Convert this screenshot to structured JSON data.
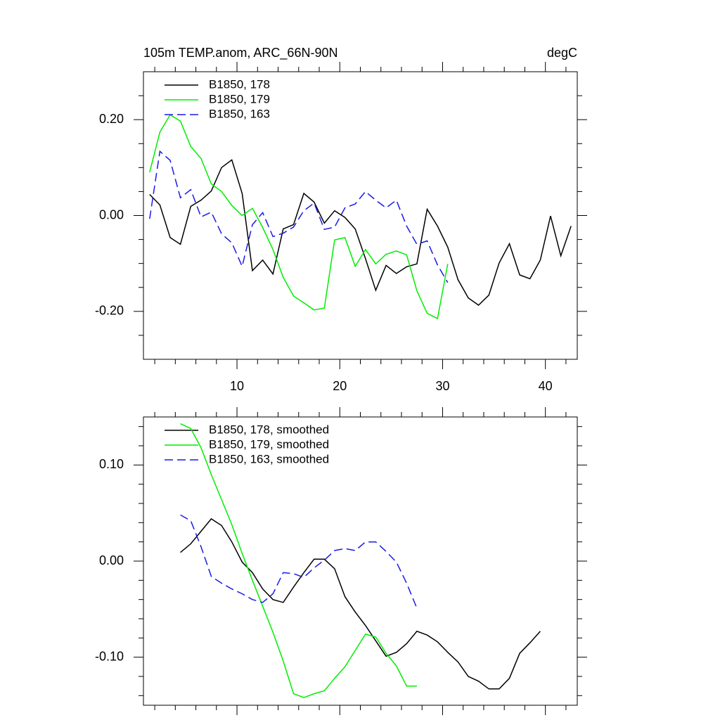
{
  "chart_data": [
    {
      "type": "line",
      "title": "105m TEMP.anom, ARC_66N-90N",
      "title_right": "degC",
      "xlim": [
        0.9,
        43.1
      ],
      "xticks": [
        10,
        20,
        30,
        40
      ],
      "xtick_labels": true,
      "xminorticks": [
        2,
        4,
        6,
        8,
        12,
        14,
        16,
        18,
        22,
        24,
        26,
        28,
        32,
        34,
        36,
        38,
        42
      ],
      "ylim": [
        -0.3,
        0.3
      ],
      "yticks": [
        {
          "value": -0.2,
          "label": "-0.20"
        },
        {
          "value": 0,
          "label": "0.00"
        },
        {
          "value": 0.2,
          "label": "0.20"
        }
      ],
      "yminorticks": [
        -0.25,
        -0.15,
        -0.1,
        -0.05,
        0.05,
        0.1,
        0.15,
        0.25
      ],
      "series": [
        {
          "name": "B1850, 178",
          "color": "#000000",
          "dashed": false,
          "x": [
            1.5,
            2.5,
            3.5,
            4.5,
            5.5,
            6.5,
            7.5,
            8.5,
            9.5,
            10.5,
            11.5,
            12.5,
            13.5,
            14.5,
            15.5,
            16.5,
            17.5,
            18.5,
            19.5,
            20.5,
            21.5,
            22.5,
            23.5,
            24.5,
            25.5,
            26.5,
            27.5,
            28.5,
            29.5,
            30.5,
            31.5,
            32.5,
            33.5,
            34.5,
            35.5,
            36.5,
            37.5,
            38.5,
            39.5,
            40.5,
            41.5,
            42.5
          ],
          "values": [
            0.044,
            0.022,
            -0.046,
            -0.06,
            0.019,
            0.032,
            0.051,
            0.1,
            0.116,
            0.046,
            -0.115,
            -0.093,
            -0.122,
            -0.028,
            -0.019,
            0.046,
            0.028,
            -0.016,
            0.01,
            -0.004,
            -0.028,
            -0.09,
            -0.156,
            -0.104,
            -0.121,
            -0.107,
            -0.101,
            0.013,
            -0.022,
            -0.066,
            -0.134,
            -0.172,
            -0.187,
            -0.166,
            -0.099,
            -0.059,
            -0.124,
            -0.132,
            -0.093,
            -0.001,
            -0.084,
            -0.022
          ]
        },
        {
          "name": "B1850, 179",
          "color": "#00ee00",
          "dashed": false,
          "x": [
            1.5,
            2.5,
            3.5,
            4.5,
            5.5,
            6.5,
            7.5,
            8.5,
            9.5,
            10.5,
            11.5,
            12.5,
            13.5,
            14.5,
            15.5,
            16.5,
            17.5,
            18.5,
            19.5,
            20.5,
            21.5,
            22.5,
            23.5,
            24.5,
            25.5,
            26.5,
            27.5,
            28.5,
            29.5,
            30.5
          ],
          "values": [
            0.09,
            0.174,
            0.21,
            0.197,
            0.144,
            0.119,
            0.066,
            0.05,
            0.021,
            0,
            0.015,
            -0.025,
            -0.071,
            -0.129,
            -0.168,
            -0.182,
            -0.197,
            -0.193,
            -0.051,
            -0.046,
            -0.106,
            -0.071,
            -0.101,
            -0.081,
            -0.074,
            -0.082,
            -0.157,
            -0.204,
            -0.215,
            -0.101
          ]
        },
        {
          "name": "B1850, 163",
          "color": "#1a1ae6",
          "dashed": true,
          "x": [
            1.5,
            2.5,
            3.5,
            4.5,
            5.5,
            6.5,
            7.5,
            8.5,
            9.5,
            10.5,
            11.5,
            12.5,
            13.5,
            14.5,
            15.5,
            16.5,
            17.5,
            18.5,
            19.5,
            20.5,
            21.5,
            22.5,
            23.5,
            24.5,
            25.5,
            26.5,
            27.5,
            28.5,
            29.5,
            30.5
          ],
          "values": [
            -0.007,
            0.134,
            0.115,
            0.037,
            0.054,
            -0.003,
            0.007,
            -0.038,
            -0.057,
            -0.106,
            -0.019,
            0.006,
            -0.044,
            -0.037,
            -0.024,
            0.01,
            0.026,
            -0.029,
            -0.024,
            0.016,
            0.024,
            0.05,
            0.032,
            0.016,
            0.032,
            -0.022,
            -0.06,
            -0.053,
            -0.103,
            -0.14
          ]
        }
      ]
    },
    {
      "type": "line",
      "xlim": [
        0.9,
        43.1
      ],
      "xticks": [
        10,
        20,
        30,
        40
      ],
      "xtick_labels": false,
      "xminorticks": [
        2,
        4,
        6,
        8,
        12,
        14,
        16,
        18,
        22,
        24,
        26,
        28,
        32,
        34,
        36,
        38,
        42
      ],
      "ylim": [
        -0.15,
        0.15
      ],
      "yticks": [
        {
          "value": -0.1,
          "label": "-0.10"
        },
        {
          "value": 0,
          "label": "0.00"
        },
        {
          "value": 0.1,
          "label": "0.10"
        }
      ],
      "yminorticks": [
        -0.14,
        -0.12,
        -0.08,
        -0.06,
        -0.04,
        -0.02,
        0.02,
        0.04,
        0.06,
        0.08,
        0.12,
        0.14
      ],
      "series": [
        {
          "name": "B1850, 178, smoothed",
          "color": "#000000",
          "dashed": false,
          "x": [
            4.5,
            5.5,
            6.5,
            7.5,
            8.5,
            9.5,
            10.5,
            11.5,
            12.5,
            13.5,
            14.5,
            15.5,
            16.5,
            17.5,
            18.5,
            19.5,
            20.5,
            21.5,
            22.5,
            23.5,
            24.5,
            25.5,
            26.5,
            27.5,
            28.5,
            29.5,
            30.5,
            31.5,
            32.5,
            33.5,
            34.5,
            35.5,
            36.5,
            37.5,
            38.5,
            39.5
          ],
          "values": [
            0.009,
            0.018,
            0.031,
            0.044,
            0.037,
            0.02,
            -0.001,
            -0.012,
            -0.029,
            -0.04,
            -0.043,
            -0.027,
            -0.012,
            0.002,
            0.002,
            -0.008,
            -0.037,
            -0.053,
            -0.067,
            -0.083,
            -0.099,
            -0.095,
            -0.086,
            -0.073,
            -0.077,
            -0.084,
            -0.095,
            -0.105,
            -0.12,
            -0.125,
            -0.133,
            -0.133,
            -0.122,
            -0.096,
            -0.085,
            -0.073
          ]
        },
        {
          "name": "B1850, 179, smoothed",
          "color": "#00ee00",
          "dashed": false,
          "x": [
            4.5,
            5.5,
            6.5,
            7.5,
            8.5,
            9.5,
            10.5,
            11.5,
            12.5,
            13.5,
            14.5,
            15.5,
            16.5,
            17.5,
            18.5,
            19.5,
            20.5,
            21.5,
            22.5,
            23.5,
            24.5,
            25.5,
            26.5,
            27.5
          ],
          "values": [
            0.143,
            0.138,
            0.118,
            0.09,
            0.064,
            0.038,
            0.008,
            -0.02,
            -0.047,
            -0.074,
            -0.104,
            -0.138,
            -0.142,
            -0.138,
            -0.135,
            -0.122,
            -0.11,
            -0.093,
            -0.076,
            -0.079,
            -0.096,
            -0.109,
            -0.13,
            -0.13
          ]
        },
        {
          "name": "B1850, 163, smoothed",
          "color": "#1a1ae6",
          "dashed": true,
          "x": [
            4.5,
            5.5,
            6.5,
            7.5,
            8.5,
            9.5,
            10.5,
            11.5,
            12.5,
            13.5,
            14.5,
            15.5,
            16.5,
            17.5,
            18.5,
            19.5,
            20.5,
            21.5,
            22.5,
            23.5,
            24.5,
            25.5,
            26.5,
            27.5
          ],
          "values": [
            0.048,
            0.042,
            0.015,
            -0.016,
            -0.023,
            -0.029,
            -0.034,
            -0.04,
            -0.043,
            -0.034,
            -0.012,
            -0.013,
            -0.017,
            -0.007,
            0.001,
            0.011,
            0.013,
            0.011,
            0.02,
            0.02,
            0.01,
            -0.001,
            -0.023,
            -0.049
          ]
        }
      ]
    }
  ]
}
